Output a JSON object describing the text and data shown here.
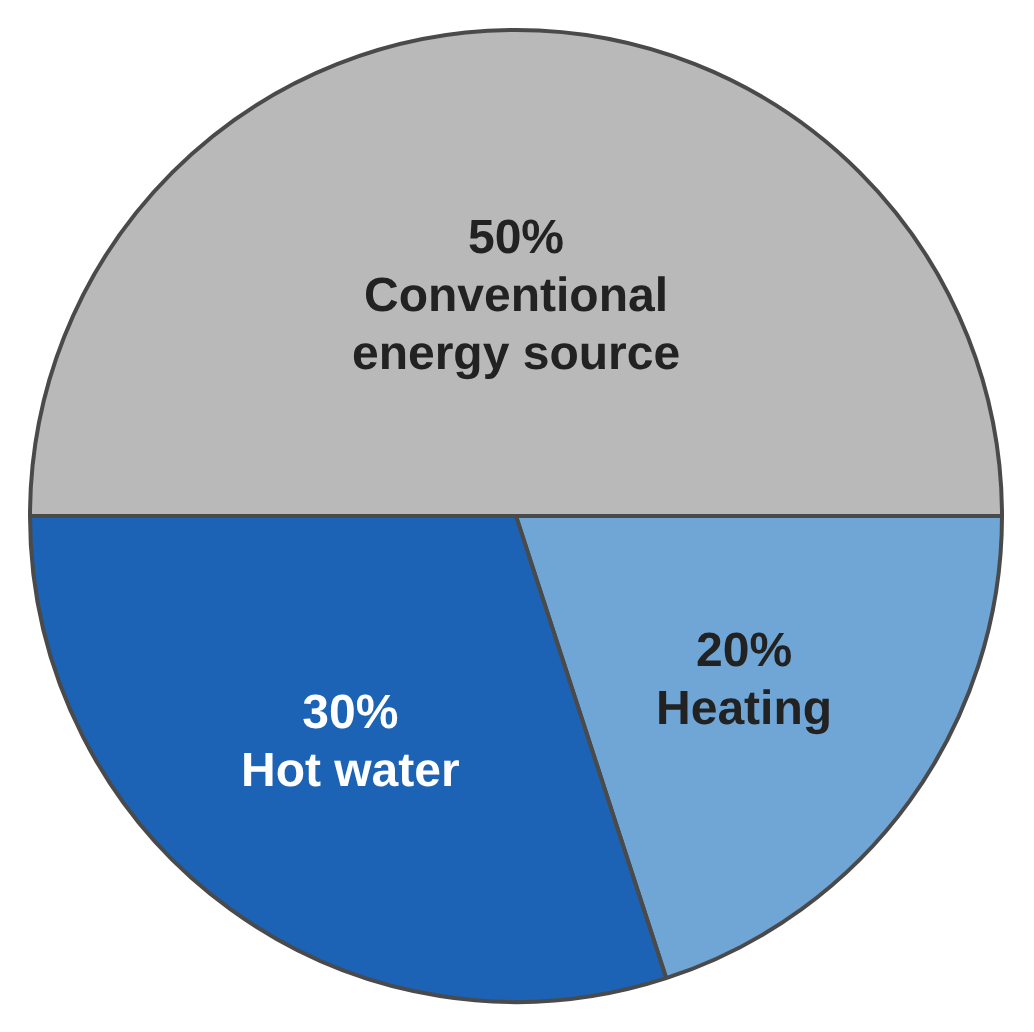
{
  "chart_data": {
    "type": "pie",
    "categories": [
      "Conventional energy source",
      "Heating",
      "Hot water"
    ],
    "values": [
      50,
      20,
      30
    ],
    "value_labels": [
      "50%",
      "20%",
      "30%"
    ],
    "colors": [
      "#b9b9b9",
      "#6fa6d6",
      "#1c62b5"
    ],
    "legend": false
  }
}
